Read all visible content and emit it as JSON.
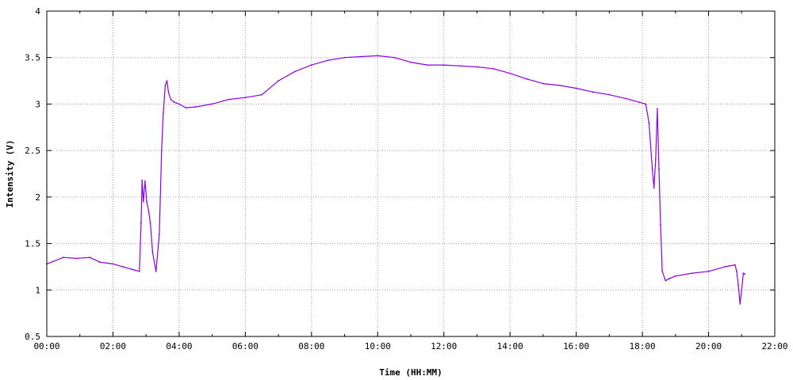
{
  "chart_data": {
    "type": "line",
    "title": "",
    "xlabel": "Time (HH:MM)",
    "ylabel": "Intensity (V)",
    "x_unit": "hours",
    "xlim": [
      0,
      22
    ],
    "ylim": [
      0.5,
      4
    ],
    "x_ticks": [
      {
        "value": 0,
        "label": "00:00"
      },
      {
        "value": 2,
        "label": "02:00"
      },
      {
        "value": 4,
        "label": "04:00"
      },
      {
        "value": 6,
        "label": "06:00"
      },
      {
        "value": 8,
        "label": "08:00"
      },
      {
        "value": 10,
        "label": "10:00"
      },
      {
        "value": 12,
        "label": "12:00"
      },
      {
        "value": 14,
        "label": "14:00"
      },
      {
        "value": 16,
        "label": "16:00"
      },
      {
        "value": 18,
        "label": "18:00"
      },
      {
        "value": 20,
        "label": "20:00"
      },
      {
        "value": 22,
        "label": "22:00"
      }
    ],
    "y_ticks": [
      {
        "value": 0.5,
        "label": "0.5"
      },
      {
        "value": 1,
        "label": "1"
      },
      {
        "value": 1.5,
        "label": "1.5"
      },
      {
        "value": 2,
        "label": "2"
      },
      {
        "value": 2.5,
        "label": "2.5"
      },
      {
        "value": 3,
        "label": "3"
      },
      {
        "value": 3.5,
        "label": "3.5"
      },
      {
        "value": 4,
        "label": "4"
      }
    ],
    "grid": true,
    "legend": "none",
    "color": "#8a00e0",
    "series": [
      {
        "x": [
          0.0,
          0.5,
          0.9,
          1.3,
          1.6,
          2.0,
          2.3,
          2.6,
          2.8,
          2.85,
          2.88,
          2.92,
          2.97,
          3.02,
          3.08,
          3.13,
          3.2,
          3.3,
          3.4,
          3.47,
          3.52,
          3.58,
          3.63,
          3.68,
          3.75,
          3.85,
          4.0,
          4.2,
          4.5,
          5.0,
          5.5,
          6.0,
          6.5,
          7.0,
          7.5,
          8.0,
          8.5,
          9.0,
          9.5,
          10.0,
          10.5,
          11.0,
          11.5,
          12.0,
          12.5,
          13.0,
          13.5,
          14.0,
          14.5,
          15.0,
          15.5,
          16.0,
          16.5,
          17.0,
          17.5,
          17.9,
          18.1,
          18.2,
          18.3,
          18.35,
          18.4,
          18.45,
          18.5,
          18.55,
          18.6,
          18.7,
          18.8,
          19.0,
          19.5,
          20.0,
          20.5,
          20.8,
          20.85,
          20.9,
          20.95,
          21.0,
          21.05,
          21.1
        ],
        "y": [
          1.28,
          1.35,
          1.34,
          1.35,
          1.3,
          1.28,
          1.25,
          1.22,
          1.2,
          1.72,
          2.18,
          1.95,
          2.17,
          1.95,
          1.85,
          1.72,
          1.4,
          1.2,
          1.6,
          2.5,
          2.9,
          3.2,
          3.25,
          3.12,
          3.05,
          3.02,
          3.0,
          2.96,
          2.97,
          3.0,
          3.05,
          3.07,
          3.1,
          3.25,
          3.35,
          3.42,
          3.47,
          3.5,
          3.51,
          3.52,
          3.5,
          3.45,
          3.42,
          3.42,
          3.41,
          3.4,
          3.38,
          3.33,
          3.27,
          3.22,
          3.2,
          3.17,
          3.13,
          3.1,
          3.06,
          3.02,
          3.0,
          2.8,
          2.3,
          2.1,
          2.4,
          2.95,
          2.3,
          1.7,
          1.2,
          1.1,
          1.12,
          1.15,
          1.18,
          1.2,
          1.25,
          1.27,
          1.2,
          1.05,
          0.85,
          1.0,
          1.18,
          1.17
        ]
      }
    ]
  }
}
